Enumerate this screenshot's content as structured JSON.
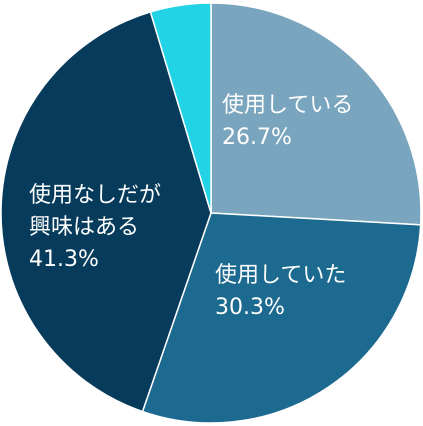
{
  "chart_data": {
    "type": "pie",
    "title": "",
    "slices": [
      {
        "label": "使用している",
        "value": 26.7,
        "value_text": "26.7%",
        "color": "#7aa5be"
      },
      {
        "label": "使用していた",
        "value": 30.3,
        "value_text": "30.3%",
        "color": "#1c6a8f"
      },
      {
        "label": "使用なしだが興味はある",
        "value": 41.3,
        "value_text": "41.3%",
        "color": "#063b5c"
      },
      {
        "label": "",
        "value": 4.8,
        "value_text": "",
        "color": "#22d3e6"
      }
    ]
  }
}
